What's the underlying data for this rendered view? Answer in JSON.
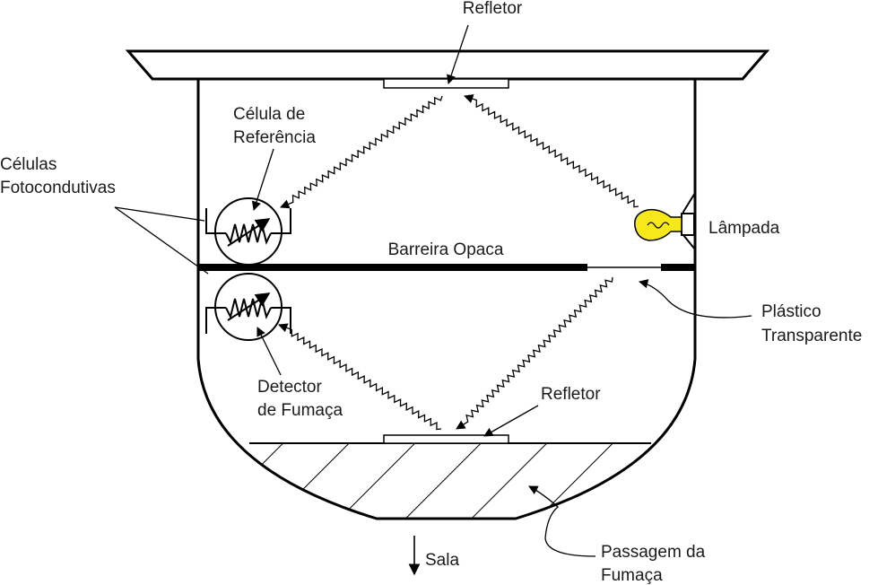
{
  "labels": {
    "refletor_top": "Refletor",
    "celula_ref_1": "Célula de",
    "celula_ref_2": "Referência",
    "celulas_foto_1": "Células",
    "celulas_foto_2": "Fotocondutivas",
    "lampada": "Lâmpada",
    "barreira": "Barreira Opaca",
    "plastico_1": "Plástico",
    "plastico_2": "Transparente",
    "detector_1": "Detector",
    "detector_2": "de Fumaça",
    "refletor_bottom": "Refletor",
    "passagem_1": "Passagem da",
    "passagem_2": "Fumaça",
    "sala": "Sala"
  },
  "colors": {
    "lamp_bulb": "#f7e81a",
    "line": "#000000"
  }
}
